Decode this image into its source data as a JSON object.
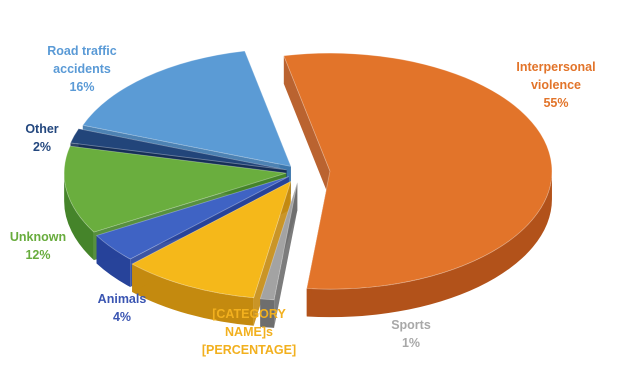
{
  "chart_data": {
    "type": "pie",
    "style": "3d-exploded",
    "legend": "none",
    "slices": [
      {
        "name": "Interpersonal violence",
        "value": 55,
        "label_lines": [
          "Interpersonal",
          "violence",
          "55%"
        ],
        "color": "#E2742A",
        "side_color": "#B2521A",
        "label_color": "#E2742A"
      },
      {
        "name": "Sports",
        "value": 1,
        "label_lines": [
          "Sports",
          "1%"
        ],
        "color": "#A3A3A3",
        "side_color": "#6E6E6E",
        "label_color": "#A8A8A8"
      },
      {
        "name": "[CATEGORY NAME]s",
        "value": 10,
        "label_lines": [
          "[CATEGORY",
          "NAME]s",
          "[PERCENTAGE]"
        ],
        "color": "#F5B81A",
        "side_color": "#C48A0F",
        "label_color": "#F2B01E"
      },
      {
        "name": "Animals",
        "value": 4,
        "label_lines": [
          "Animals",
          "4%"
        ],
        "color": "#3F63C4",
        "side_color": "#27439A",
        "label_color": "#3A55B2"
      },
      {
        "name": "Unknown",
        "value": 12,
        "label_lines": [
          "Unknown",
          "12%"
        ],
        "color": "#6AAE3E",
        "side_color": "#45842A",
        "label_color": "#68AC3D"
      },
      {
        "name": "Other",
        "value": 2,
        "label_lines": [
          "Other",
          "2%"
        ],
        "color": "#22457A",
        "side_color": "#162F57",
        "label_color": "#23477E"
      },
      {
        "name": "Road traffic accidents",
        "value": 16,
        "label_lines": [
          "Road traffic",
          "accidents",
          "16%"
        ],
        "color": "#5B9BD5",
        "side_color": "#3A74AB",
        "label_color": "#5A9AD6"
      }
    ]
  }
}
